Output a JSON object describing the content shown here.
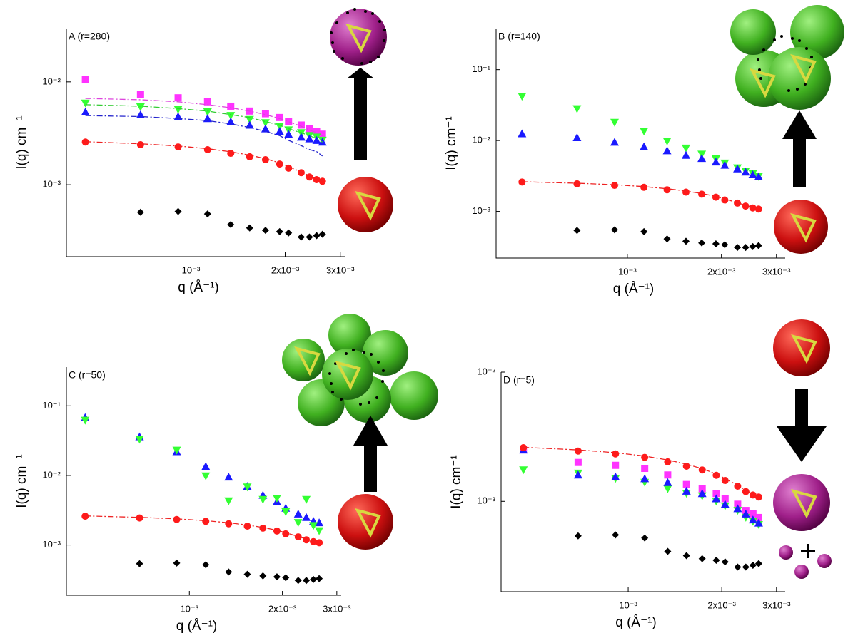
{
  "chart_data": [
    {
      "type": "scatter",
      "title": "A (r=280)",
      "xlabel": "q (Å⁻¹)",
      "ylabel": "I(q) cm⁻¹",
      "xscale": "log",
      "yscale": "log",
      "xlim": [
        0.0004,
        0.0031
      ],
      "ylim": [
        0.0002,
        0.033
      ],
      "xticks": [
        {
          "value": 0.001,
          "label": "10⁻³"
        },
        {
          "value": 0.002,
          "label": "2x10⁻³"
        },
        {
          "value": 0.003,
          "label": "3x10⁻³"
        }
      ],
      "yticks": [
        {
          "value": 0.01,
          "label": "10⁻²"
        },
        {
          "value": 0.001,
          "label": "10⁻³"
        }
      ],
      "x": [
        0.00046,
        0.00069,
        0.00091,
        0.00113,
        0.00134,
        0.00154,
        0.00173,
        0.00192,
        0.00205,
        0.00225,
        0.00239,
        0.00252,
        0.00263
      ],
      "series": [
        {
          "marker": "square",
          "color": "#ff33ff",
          "values": [
            0.0105,
            0.0075,
            0.007,
            0.0064,
            0.0058,
            0.0052,
            0.0049,
            0.0045,
            0.0041,
            0.0038,
            0.0035,
            0.0033,
            0.0031
          ]
        },
        {
          "marker": "triangle-down",
          "color": "#33ff33",
          "values": [
            0.0062,
            0.0057,
            0.0054,
            0.0051,
            0.0047,
            0.0043,
            0.004,
            0.0037,
            0.0034,
            0.0032,
            0.003,
            0.0029,
            0.0027
          ]
        },
        {
          "marker": "triangle-up",
          "color": "#1a1aff",
          "values": [
            0.0051,
            0.0048,
            0.0046,
            0.0044,
            0.0041,
            0.0038,
            0.0035,
            0.0033,
            0.0031,
            0.0029,
            0.0028,
            0.0027,
            0.0026
          ]
        },
        {
          "marker": "circle",
          "color": "#ff1a1a",
          "values": [
            0.0026,
            0.00245,
            0.00233,
            0.00219,
            0.00202,
            0.00187,
            0.00175,
            0.00159,
            0.00145,
            0.00131,
            0.00119,
            0.00112,
            0.00108
          ]
        },
        {
          "marker": "diamond",
          "color": "#000000",
          "values": [
            null,
            0.00054,
            0.00055,
            0.00052,
            0.00041,
            0.00038,
            0.00036,
            0.00035,
            0.00034,
            0.00031,
            0.00031,
            0.00032,
            0.00033
          ]
        },
        {
          "marker": "dashdot",
          "color": "#dd44dd",
          "values": [
            0.0069,
            0.0067,
            0.0064,
            0.006,
            0.0056,
            0.0052,
            0.0048,
            0.0044,
            0.0041,
            0.0037,
            0.0034,
            0.0032,
            0.003
          ]
        },
        {
          "marker": "dashdot",
          "color": "#33cc33",
          "values": [
            0.006,
            0.0058,
            0.0055,
            0.0052,
            0.0048,
            0.0045,
            0.0041,
            0.0038,
            0.0035,
            0.0032,
            0.003,
            0.0028,
            0.0026
          ]
        },
        {
          "marker": "dashdot",
          "color": "#2222cc",
          "values": [
            0.0047,
            0.0046,
            0.0044,
            0.0042,
            0.0039,
            0.0036,
            0.0033,
            0.003,
            0.0027,
            0.0024,
            0.0022,
            0.0021,
            0.0019
          ]
        },
        {
          "marker": "dashdot",
          "color": "#ee2222",
          "values": [
            0.00262,
            0.0025,
            0.00238,
            0.00224,
            0.00209,
            0.00194,
            0.00179,
            0.00163,
            0.0015,
            0.00133,
            0.00122,
            0.00114,
            0.00109
          ]
        }
      ]
    },
    {
      "type": "scatter",
      "title": "B (r=140)",
      "xlabel": "q (Å⁻¹)",
      "ylabel": "I(q) cm⁻¹",
      "xscale": "log",
      "yscale": "log",
      "xlim": [
        0.00038,
        0.0032
      ],
      "ylim": [
        0.00022,
        0.38
      ],
      "xticks": [
        {
          "value": 0.001,
          "label": "10⁻³"
        },
        {
          "value": 0.002,
          "label": "2x10⁻³"
        },
        {
          "value": 0.003,
          "label": "3x10⁻³"
        }
      ],
      "yticks": [
        {
          "value": 0.1,
          "label": "10⁻¹"
        },
        {
          "value": 0.01,
          "label": "10⁻²"
        },
        {
          "value": 0.001,
          "label": "10⁻³"
        }
      ],
      "x": [
        0.00046,
        0.00069,
        0.00091,
        0.00113,
        0.00134,
        0.00154,
        0.00173,
        0.00192,
        0.00205,
        0.00225,
        0.00239,
        0.00252,
        0.00263
      ],
      "series": [
        {
          "marker": "triangle-down",
          "color": "#33ff33",
          "values": [
            0.042,
            0.028,
            0.018,
            0.0135,
            0.0098,
            0.0078,
            0.0064,
            0.0055,
            0.0048,
            0.0041,
            0.0037,
            0.0034,
            0.0031
          ]
        },
        {
          "marker": "triangle-up",
          "color": "#1a1aff",
          "values": [
            0.0125,
            0.011,
            0.0095,
            0.0082,
            0.0072,
            0.0062,
            0.0056,
            0.005,
            0.0045,
            0.004,
            0.0036,
            0.0033,
            0.0031
          ]
        },
        {
          "marker": "circle",
          "color": "#ff1a1a",
          "values": [
            0.0026,
            0.00245,
            0.00233,
            0.00219,
            0.00202,
            0.00187,
            0.00175,
            0.00159,
            0.00145,
            0.00131,
            0.00119,
            0.00112,
            0.00108
          ]
        },
        {
          "marker": "diamond",
          "color": "#000000",
          "values": [
            null,
            0.00054,
            0.00055,
            0.00052,
            0.00041,
            0.00038,
            0.00036,
            0.00035,
            0.00034,
            0.00031,
            0.00031,
            0.00032,
            0.00033
          ]
        },
        {
          "marker": "dashdot",
          "color": "#ee2222",
          "values": [
            0.00262,
            0.0025,
            0.00238,
            0.00224,
            0.00209,
            0.00194,
            0.00179,
            0.00163,
            0.0015,
            0.00133,
            0.00122,
            0.00114,
            0.00109
          ]
        }
      ]
    },
    {
      "type": "scatter",
      "title": "C (r=50)",
      "xlabel": "q (Å⁻¹)",
      "ylabel": "I(q) cm⁻¹",
      "xscale": "log",
      "yscale": "log",
      "xlim": [
        0.0004,
        0.0031
      ],
      "ylim": [
        0.00019,
        0.36
      ],
      "xticks": [
        {
          "value": 0.001,
          "label": "10⁻³"
        },
        {
          "value": 0.002,
          "label": "2x10⁻³"
        },
        {
          "value": 0.003,
          "label": "3x10⁻³"
        }
      ],
      "yticks": [
        {
          "value": 0.1,
          "label": "10⁻¹"
        },
        {
          "value": 0.01,
          "label": "10⁻²"
        },
        {
          "value": 0.001,
          "label": "10⁻³"
        }
      ],
      "x": [
        0.00046,
        0.00069,
        0.00091,
        0.00113,
        0.00134,
        0.00154,
        0.00173,
        0.00192,
        0.00205,
        0.00225,
        0.00239,
        0.00252,
        0.00263
      ],
      "series": [
        {
          "marker": "triangle-up",
          "color": "#1a1aff",
          "values": [
            0.068,
            0.036,
            0.022,
            0.0135,
            0.0095,
            0.007,
            0.0052,
            0.0042,
            0.0034,
            0.0028,
            0.0025,
            0.0022,
            0.0021
          ]
        },
        {
          "marker": "triangle-down",
          "color": "#33ff33",
          "values": [
            0.062,
            0.033,
            0.023,
            0.0098,
            0.0043,
            0.0068,
            0.0045,
            0.0047,
            0.003,
            0.0021,
            0.0045,
            0.0019,
            0.0016
          ]
        },
        {
          "marker": "circle",
          "color": "#ff1a1a",
          "values": [
            0.0026,
            0.00245,
            0.00233,
            0.00219,
            0.00202,
            0.00187,
            0.00175,
            0.00159,
            0.00145,
            0.00131,
            0.00119,
            0.00112,
            0.00108
          ]
        },
        {
          "marker": "diamond",
          "color": "#000000",
          "values": [
            null,
            0.00054,
            0.00055,
            0.00052,
            0.00041,
            0.00038,
            0.00036,
            0.00035,
            0.00034,
            0.00031,
            0.00031,
            0.00032,
            0.00033
          ]
        },
        {
          "marker": "dashdot",
          "color": "#ee2222",
          "values": [
            0.00262,
            0.0025,
            0.00238,
            0.00224,
            0.00209,
            0.00194,
            0.00179,
            0.00163,
            0.0015,
            0.00133,
            0.00122,
            0.00114,
            0.00109
          ]
        }
      ]
    },
    {
      "type": "scatter",
      "title": "D (r=5)",
      "xlabel": "q (Å⁻¹)",
      "ylabel": "I(q) cm⁻¹",
      "xscale": "log",
      "yscale": "log",
      "xlim": [
        0.00039,
        0.0032
      ],
      "ylim": [
        0.0002,
        0.01
      ],
      "xticks": [
        {
          "value": 0.001,
          "label": "10⁻³"
        },
        {
          "value": 0.002,
          "label": "2x10⁻³"
        },
        {
          "value": 0.003,
          "label": "3x10⁻³"
        }
      ],
      "yticks": [
        {
          "value": 0.01,
          "label": "10⁻²"
        },
        {
          "value": 0.001,
          "label": "10⁻³"
        }
      ],
      "x": [
        0.00046,
        0.00069,
        0.00091,
        0.00113,
        0.00134,
        0.00154,
        0.00173,
        0.00192,
        0.00205,
        0.00225,
        0.00239,
        0.00252,
        0.00263
      ],
      "series": [
        {
          "marker": "square",
          "color": "#ff33ff",
          "values": [
            0.0025,
            0.002,
            0.0019,
            0.0018,
            0.0016,
            0.00135,
            0.00125,
            0.00115,
            0.00105,
            0.00095,
            0.00085,
            0.0008,
            0.00075
          ]
        },
        {
          "marker": "triangle-down",
          "color": "#33ff33",
          "values": [
            0.00175,
            0.00165,
            0.0015,
            0.0014,
            0.00125,
            0.00115,
            0.0011,
            0.001,
            0.00092,
            0.00085,
            0.00075,
            0.0007,
            0.00066
          ]
        },
        {
          "marker": "triangle-up",
          "color": "#1a1aff",
          "values": [
            0.0025,
            0.0016,
            0.00155,
            0.0015,
            0.0014,
            0.0012,
            0.00115,
            0.00105,
            0.00095,
            0.00088,
            0.0008,
            0.00072,
            0.00068
          ]
        },
        {
          "marker": "circle",
          "color": "#ff1a1a",
          "values": [
            0.0026,
            0.00245,
            0.00233,
            0.00219,
            0.00202,
            0.00187,
            0.00175,
            0.00159,
            0.00145,
            0.00131,
            0.00119,
            0.00112,
            0.00108
          ]
        },
        {
          "marker": "diamond",
          "color": "#000000",
          "values": [
            null,
            0.00054,
            0.00055,
            0.00052,
            0.00041,
            0.00038,
            0.00036,
            0.00035,
            0.00034,
            0.00031,
            0.00031,
            0.00032,
            0.00033
          ]
        },
        {
          "marker": "dashdot",
          "color": "#ee2222",
          "values": [
            0.00262,
            0.0025,
            0.00238,
            0.00224,
            0.00209,
            0.00194,
            0.00179,
            0.00163,
            0.0015,
            0.00133,
            0.00122,
            0.00114,
            0.00109
          ]
        }
      ]
    }
  ]
}
